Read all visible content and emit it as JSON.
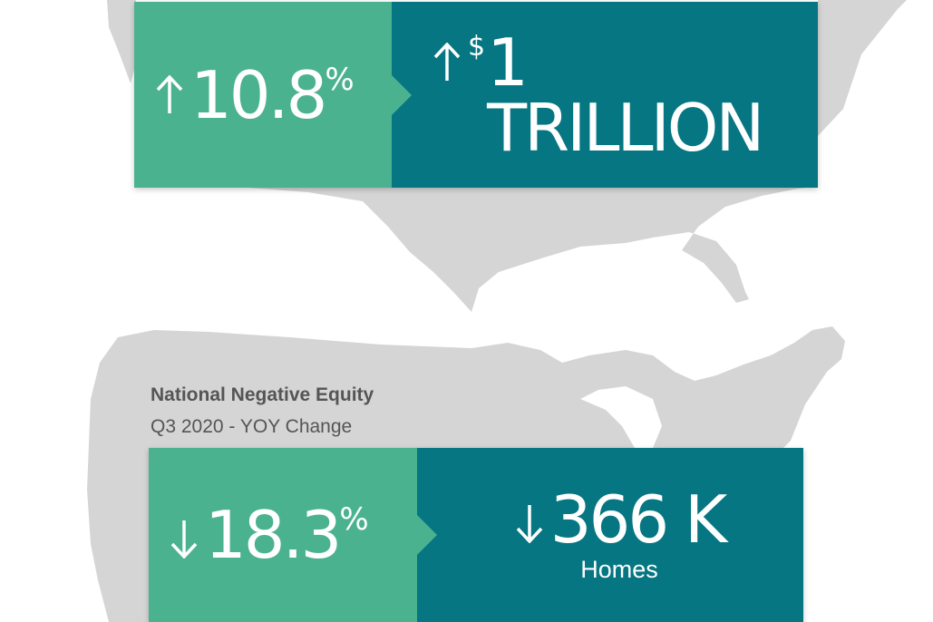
{
  "colors": {
    "green": "#4bb290",
    "teal": "#057682",
    "map_gray": "#d5d5d5",
    "text_gray": "#555555"
  },
  "top_panel": {
    "left": {
      "direction": "up",
      "arrow_icon": "arrow-up-icon",
      "value": "10.8",
      "unit": "%"
    },
    "right": {
      "direction": "up",
      "arrow_icon": "arrow-up-icon",
      "prefix": "$",
      "value": "1 TRILLION"
    }
  },
  "bottom_section": {
    "title": "National Negative Equity",
    "subtitle": "Q3 2020 - YOY Change"
  },
  "bottom_panel": {
    "left": {
      "direction": "down",
      "arrow_icon": "arrow-down-icon",
      "value": "18.3",
      "unit": "%"
    },
    "right": {
      "direction": "down",
      "arrow_icon": "arrow-down-icon",
      "value": "366 K",
      "label": "Homes"
    }
  }
}
